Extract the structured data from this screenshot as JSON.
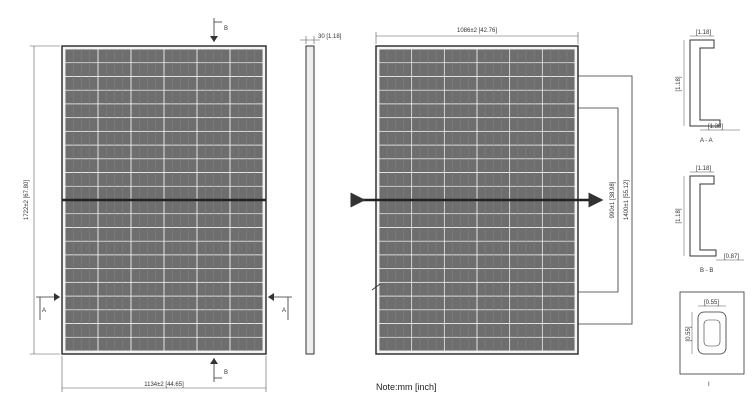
{
  "front_view": {
    "height_label": "1722±2 [67.80]",
    "width_label": "1134±2 [44.65]",
    "section_b": "B",
    "section_a_left": "A",
    "section_a_right": "A"
  },
  "side_view": {
    "thickness_label": "30 [1.18]"
  },
  "back_view": {
    "top_width_label": "1086±2 [42.76]",
    "mount_inner_label": "990±1 [38.98]",
    "mount_outer_label": "1400±1 [55.12]"
  },
  "section_details": {
    "section_a_caption": "A - A",
    "section_a_top": "[1.18]",
    "section_a_height": "[1.18]",
    "section_a_base": "[1.38]",
    "section_b_caption": "B - B",
    "section_b_top": "[1.18]",
    "section_b_height": "[1.18]",
    "section_b_base": "[0.87]",
    "junction_top": "[0.55]",
    "junction_side": "[0.55]",
    "junction_caption": "I"
  },
  "note": "Note:mm [inch]",
  "colors": {
    "line": "#3a3a3a",
    "cell": "#6e6e6e",
    "frame": "#4a4a4a"
  }
}
